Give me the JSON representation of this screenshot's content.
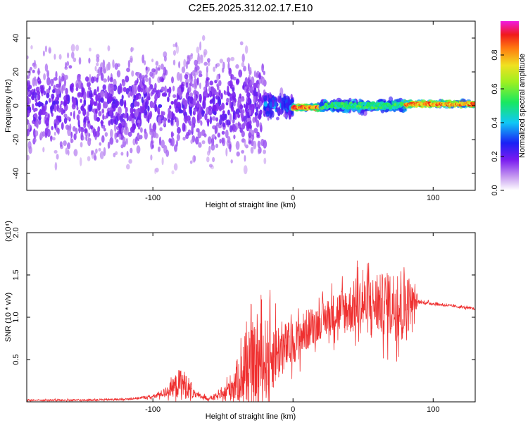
{
  "title": "C2E5.2025.312.02.17.E10",
  "colors": {
    "snr_line": "#ef3030",
    "axis": "#000000"
  },
  "chart_data": [
    {
      "type": "heatmap",
      "xlabel": "Height of straight line (km)",
      "ylabel": "Frequency (Hz)",
      "xlim": [
        -190,
        130
      ],
      "ylim": [
        -50,
        50
      ],
      "xticks": [
        -100,
        0,
        100
      ],
      "xtick_labels": [
        "-100",
        "0",
        "100"
      ],
      "yticks": [
        -40,
        -20,
        0,
        20,
        40
      ],
      "ytick_labels": [
        "-40",
        "-20",
        "0",
        "20",
        "40"
      ],
      "colorbar": {
        "label": "Normalized spectral amplitude",
        "range": [
          0,
          1
        ],
        "ticks": [
          0,
          0.2,
          0.4,
          0.6,
          0.8
        ],
        "tick_labels": [
          "0.0",
          "0.2",
          "0.4",
          "0.6",
          "0.8"
        ],
        "colormap": "rainbow (white → violet → blue → cyan → green → yellow → orange → red → magenta)"
      },
      "description_points": [
        {
          "x_range": [
            -190,
            -20
          ],
          "freq_center": 0,
          "freq_spread": 45,
          "amplitude": 0.2
        },
        {
          "x_range": [
            -20,
            0
          ],
          "freq_center": 0,
          "freq_spread": 10,
          "amplitude": 0.35
        },
        {
          "x_range": [
            0,
            20
          ],
          "freq_center": -1,
          "freq_spread": 2,
          "amplitude": 0.85
        },
        {
          "x_range": [
            20,
            80
          ],
          "freq_center": 0,
          "freq_spread": 5,
          "amplitude": 0.5
        },
        {
          "x_range": [
            80,
            130
          ],
          "freq_center": 1,
          "freq_spread": 2,
          "amplitude": 0.8
        }
      ],
      "grid": false
    },
    {
      "type": "line",
      "xlabel": "Height of straight line (km)",
      "ylabel": "SNR (10 * v/v)",
      "y_multiplier": "(x10⁴)",
      "xlim": [
        -190,
        130
      ],
      "ylim": [
        0,
        2.0
      ],
      "xticks": [
        -100,
        0,
        100
      ],
      "xtick_labels": [
        "-100",
        "0",
        "100"
      ],
      "yticks": [
        0.5,
        1.0,
        1.5,
        2.0
      ],
      "ytick_labels": [
        "0.5",
        "1.0",
        "1.5",
        "2.0"
      ],
      "series": [
        {
          "x": [
            -190,
            -150,
            -120,
            -100,
            -90,
            -85,
            -80,
            -75,
            -70,
            -60,
            -50,
            -40,
            -30,
            -20,
            -10,
            0,
            10,
            20,
            30,
            40,
            50,
            60,
            70,
            80,
            84,
            90,
            100,
            110,
            120,
            130
          ],
          "baseline": [
            0.02,
            0.02,
            0.03,
            0.06,
            0.12,
            0.18,
            0.22,
            0.18,
            0.08,
            0.04,
            0.08,
            0.25,
            0.4,
            0.5,
            0.6,
            0.7,
            0.85,
            0.95,
            1.05,
            1.1,
            1.15,
            1.15,
            1.15,
            1.15,
            1.18,
            1.18,
            1.16,
            1.14,
            1.12,
            1.1
          ],
          "noise": [
            0.01,
            0.01,
            0.01,
            0.02,
            0.06,
            0.12,
            0.2,
            0.14,
            0.04,
            0.02,
            0.06,
            0.25,
            0.45,
            0.5,
            0.35,
            0.25,
            0.25,
            0.2,
            0.25,
            0.3,
            0.35,
            0.35,
            0.4,
            0.5,
            0.25,
            0.02,
            0.02,
            0.015,
            0.015,
            0.015
          ]
        }
      ],
      "grid": false
    }
  ]
}
